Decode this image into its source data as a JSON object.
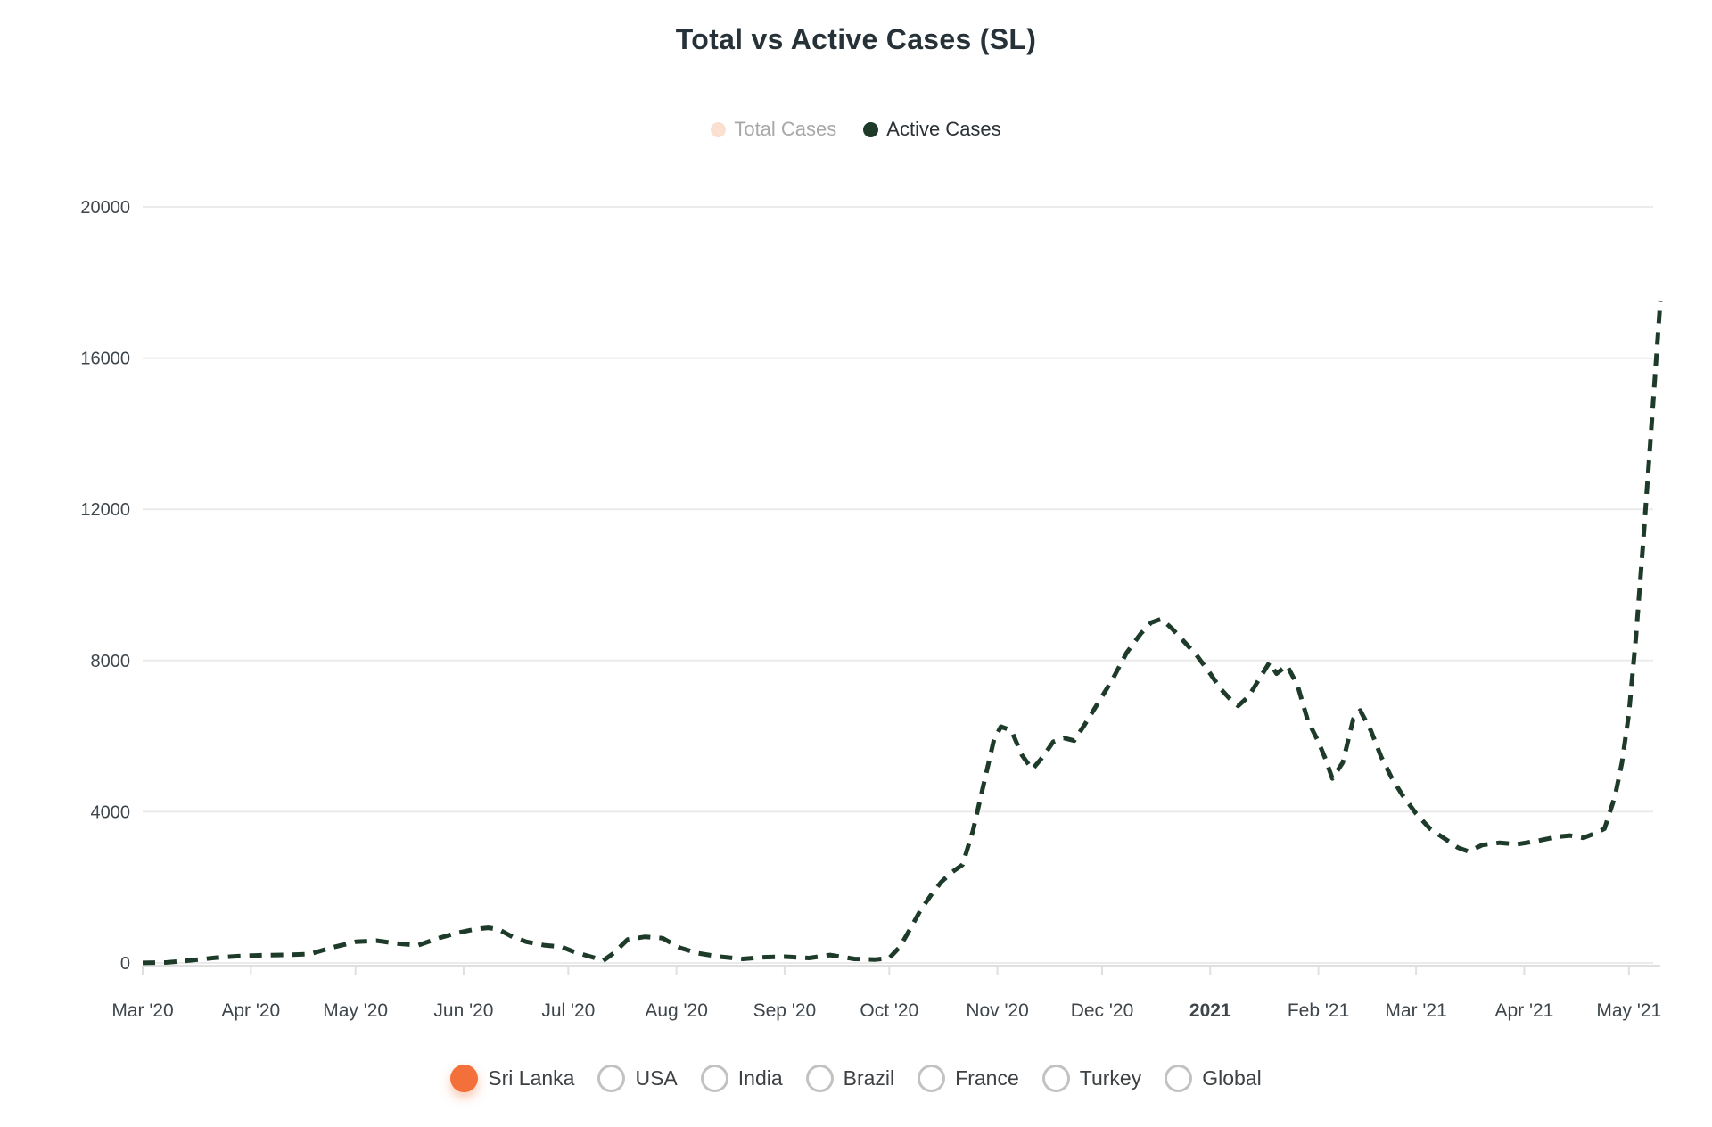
{
  "page": {
    "background": "#ffffff"
  },
  "chart_data": {
    "type": "line",
    "title": "Total vs Active Cases (SL)",
    "title_color": "#263238",
    "legend": {
      "position": "top",
      "entries": [
        {
          "label": "Total Cases",
          "marker_color": "#fbdfd1",
          "label_color": "#a8a8a8",
          "state": "hidden"
        },
        {
          "label": "Active Cases",
          "marker_color": "#1e3b2a",
          "label_color": "#2b3136",
          "state": "visible"
        }
      ]
    },
    "grid": {
      "horizontal": true,
      "vertical": false,
      "color": "#ebebeb",
      "axis_color": "#e0e0e0"
    },
    "y_axis": {
      "range": [
        0,
        20000
      ],
      "ticks": [
        0,
        4000,
        8000,
        12000,
        16000,
        20000
      ]
    },
    "x_axis": {
      "type": "datetime",
      "range": [
        "2020-03-01",
        "2021-05-10"
      ],
      "ticks": [
        {
          "label": "Mar '20",
          "date": "2020-03-01",
          "bold": false
        },
        {
          "label": "Apr '20",
          "date": "2020-04-01",
          "bold": false
        },
        {
          "label": "May '20",
          "date": "2020-05-01",
          "bold": false
        },
        {
          "label": "Jun '20",
          "date": "2020-06-01",
          "bold": false
        },
        {
          "label": "Jul '20",
          "date": "2020-07-01",
          "bold": false
        },
        {
          "label": "Aug '20",
          "date": "2020-08-01",
          "bold": false
        },
        {
          "label": "Sep '20",
          "date": "2020-09-01",
          "bold": false
        },
        {
          "label": "Oct '20",
          "date": "2020-10-01",
          "bold": false
        },
        {
          "label": "Nov '20",
          "date": "2020-11-01",
          "bold": false
        },
        {
          "label": "Dec '20",
          "date": "2020-12-01",
          "bold": false
        },
        {
          "label": "2021",
          "date": "2021-01-01",
          "bold": true
        },
        {
          "label": "Feb '21",
          "date": "2021-02-01",
          "bold": false
        },
        {
          "label": "Mar '21",
          "date": "2021-03-01",
          "bold": false
        },
        {
          "label": "Apr '21",
          "date": "2021-04-01",
          "bold": false
        },
        {
          "label": "May '21",
          "date": "2021-05-01",
          "bold": false
        }
      ]
    },
    "line_style": {
      "dashed": true,
      "dash": [
        14,
        10
      ],
      "width": 5
    },
    "series": [
      {
        "name": "Active Cases",
        "color": "#1e3b2a",
        "points": [
          [
            "2020-03-01",
            2
          ],
          [
            "2020-03-08",
            15
          ],
          [
            "2020-03-15",
            70
          ],
          [
            "2020-03-22",
            140
          ],
          [
            "2020-03-29",
            185
          ],
          [
            "2020-04-05",
            205
          ],
          [
            "2020-04-12",
            215
          ],
          [
            "2020-04-18",
            235
          ],
          [
            "2020-04-24",
            400
          ],
          [
            "2020-05-01",
            560
          ],
          [
            "2020-05-07",
            590
          ],
          [
            "2020-05-13",
            515
          ],
          [
            "2020-05-19",
            470
          ],
          [
            "2020-05-25",
            660
          ],
          [
            "2020-05-30",
            790
          ],
          [
            "2020-06-04",
            890
          ],
          [
            "2020-06-08",
            930
          ],
          [
            "2020-06-11",
            890
          ],
          [
            "2020-06-15",
            690
          ],
          [
            "2020-06-19",
            560
          ],
          [
            "2020-06-24",
            470
          ],
          [
            "2020-06-29",
            430
          ],
          [
            "2020-07-03",
            280
          ],
          [
            "2020-07-08",
            150
          ],
          [
            "2020-07-11",
            60
          ],
          [
            "2020-07-14",
            260
          ],
          [
            "2020-07-18",
            620
          ],
          [
            "2020-07-23",
            690
          ],
          [
            "2020-07-28",
            655
          ],
          [
            "2020-08-02",
            400
          ],
          [
            "2020-08-07",
            260
          ],
          [
            "2020-08-13",
            170
          ],
          [
            "2020-08-20",
            105
          ],
          [
            "2020-08-26",
            150
          ],
          [
            "2020-09-01",
            165
          ],
          [
            "2020-09-08",
            130
          ],
          [
            "2020-09-14",
            210
          ],
          [
            "2020-09-21",
            105
          ],
          [
            "2020-09-27",
            90
          ],
          [
            "2020-10-01",
            130
          ],
          [
            "2020-10-04",
            420
          ],
          [
            "2020-10-07",
            900
          ],
          [
            "2020-10-10",
            1400
          ],
          [
            "2020-10-13",
            1800
          ],
          [
            "2020-10-16",
            2150
          ],
          [
            "2020-10-19",
            2400
          ],
          [
            "2020-10-22",
            2600
          ],
          [
            "2020-10-25",
            3500
          ],
          [
            "2020-10-28",
            4700
          ],
          [
            "2020-10-31",
            5900
          ],
          [
            "2020-11-02",
            6250
          ],
          [
            "2020-11-05",
            6150
          ],
          [
            "2020-11-08",
            5500
          ],
          [
            "2020-11-11",
            5120
          ],
          [
            "2020-11-14",
            5450
          ],
          [
            "2020-11-17",
            5850
          ],
          [
            "2020-11-20",
            5950
          ],
          [
            "2020-11-23",
            5880
          ],
          [
            "2020-11-26",
            6300
          ],
          [
            "2020-11-30",
            6900
          ],
          [
            "2020-12-04",
            7500
          ],
          [
            "2020-12-08",
            8200
          ],
          [
            "2020-12-12",
            8700
          ],
          [
            "2020-12-15",
            9000
          ],
          [
            "2020-12-18",
            9100
          ],
          [
            "2020-12-21",
            8850
          ],
          [
            "2020-12-24",
            8550
          ],
          [
            "2020-12-28",
            8150
          ],
          [
            "2021-01-01",
            7650
          ],
          [
            "2021-01-04",
            7250
          ],
          [
            "2021-01-07",
            6950
          ],
          [
            "2021-01-09",
            6800
          ],
          [
            "2021-01-12",
            7050
          ],
          [
            "2021-01-15",
            7500
          ],
          [
            "2021-01-18",
            7950
          ],
          [
            "2021-01-20",
            7650
          ],
          [
            "2021-01-23",
            7870
          ],
          [
            "2021-01-26",
            7350
          ],
          [
            "2021-01-29",
            6400
          ],
          [
            "2021-02-01",
            5850
          ],
          [
            "2021-02-03",
            5400
          ],
          [
            "2021-02-05",
            4880
          ],
          [
            "2021-02-08",
            5300
          ],
          [
            "2021-02-11",
            6450
          ],
          [
            "2021-02-13",
            6680
          ],
          [
            "2021-02-16",
            6150
          ],
          [
            "2021-02-19",
            5450
          ],
          [
            "2021-02-22",
            4900
          ],
          [
            "2021-02-25",
            4450
          ],
          [
            "2021-03-01",
            3950
          ],
          [
            "2021-03-05",
            3550
          ],
          [
            "2021-03-09",
            3300
          ],
          [
            "2021-03-13",
            3050
          ],
          [
            "2021-03-16",
            2950
          ],
          [
            "2021-03-20",
            3120
          ],
          [
            "2021-03-25",
            3180
          ],
          [
            "2021-03-30",
            3140
          ],
          [
            "2021-04-05",
            3230
          ],
          [
            "2021-04-10",
            3330
          ],
          [
            "2021-04-14",
            3370
          ],
          [
            "2021-04-18",
            3310
          ],
          [
            "2021-04-21",
            3420
          ],
          [
            "2021-04-24",
            3550
          ],
          [
            "2021-04-27",
            4400
          ],
          [
            "2021-04-29",
            5300
          ],
          [
            "2021-05-01",
            6600
          ],
          [
            "2021-05-03",
            8600
          ],
          [
            "2021-05-05",
            11000
          ],
          [
            "2021-05-07",
            13600
          ],
          [
            "2021-05-09",
            16200
          ],
          [
            "2021-05-10",
            17500
          ]
        ]
      }
    ]
  },
  "country_selector": {
    "accent_color": "#f3703a",
    "inactive_ring_color": "#c2c2c2",
    "label_color": "#3d4144",
    "options": [
      {
        "label": "Sri Lanka",
        "selected": true
      },
      {
        "label": "USA",
        "selected": false
      },
      {
        "label": "India",
        "selected": false
      },
      {
        "label": "Brazil",
        "selected": false
      },
      {
        "label": "France",
        "selected": false
      },
      {
        "label": "Turkey",
        "selected": false
      },
      {
        "label": "Global",
        "selected": false
      }
    ]
  }
}
